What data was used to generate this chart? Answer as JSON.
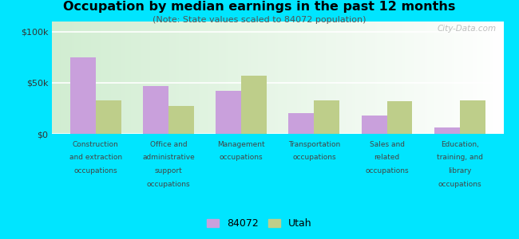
{
  "title": "Occupation by median earnings in the past 12 months",
  "subtitle": "(Note: State values scaled to 84072 population)",
  "categories": [
    "Construction\nand extraction\noccupations",
    "Office and\nadministrative\nsupport\noccupations",
    "Management\noccupations",
    "Transportation\noccupations",
    "Sales and\nrelated\noccupations",
    "Education,\ntraining, and\nlibrary\noccupations"
  ],
  "values_84072": [
    75000,
    47000,
    42000,
    20000,
    18000,
    6000
  ],
  "values_utah": [
    33000,
    27000,
    57000,
    33000,
    32000,
    33000
  ],
  "color_84072": "#c9a0dc",
  "color_utah": "#bece8a",
  "outer_background": "#00e5ff",
  "ylim": [
    0,
    110000
  ],
  "yticks": [
    0,
    50000,
    100000
  ],
  "ytick_labels": [
    "$0",
    "$50k",
    "$100k"
  ],
  "legend_label_84072": "84072",
  "legend_label_utah": "Utah",
  "watermark": "City-Data.com"
}
